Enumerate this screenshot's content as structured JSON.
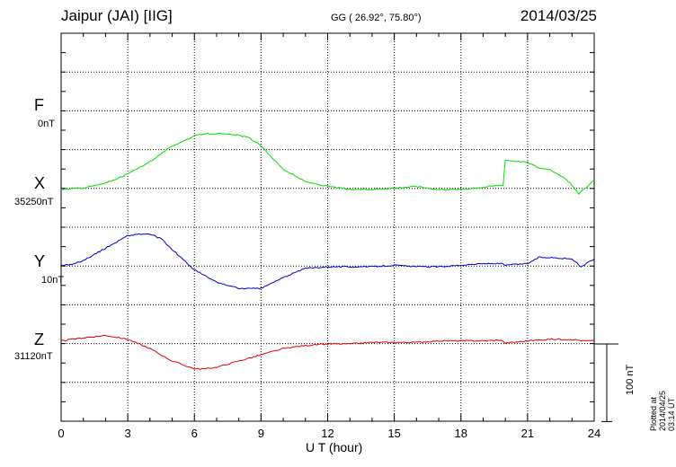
{
  "header": {
    "station": "Jaipur (JAI)  [IIG]",
    "coords": "GG ( 26.92°,  75.80°)",
    "date": "2014/03/25"
  },
  "components": [
    {
      "name": "F",
      "baseline": "0nT",
      "color": "#ffa500"
    },
    {
      "name": "X",
      "baseline": "35250nT",
      "color": "#00dd00"
    },
    {
      "name": "Y",
      "baseline": "10nT",
      "color": "#0000cc"
    },
    {
      "name": "Z",
      "baseline": "31120nT",
      "color": "#dd0000"
    }
  ],
  "scale_bar_label": "100 nT",
  "plotted_note": "Plotted at 2014/04/25 03:14 UT",
  "chart_data": {
    "type": "line",
    "xlabel": "U T (hour)",
    "xlim": [
      0,
      24
    ],
    "x_ticks": [
      0,
      3,
      6,
      9,
      12,
      15,
      18,
      21,
      24
    ],
    "y_unit": "nT",
    "scale_bar_nT": 100,
    "grid": true,
    "series": [
      {
        "name": "X",
        "color": "#00dd00",
        "x": [
          0,
          1,
          2,
          3,
          4,
          5,
          6,
          6.5,
          7,
          8,
          8.5,
          9,
          10,
          11,
          12,
          13,
          14,
          15,
          16,
          17,
          18,
          19,
          19.9,
          20,
          21,
          21.5,
          22,
          22.5,
          23,
          23.3,
          24
        ],
        "y": [
          0,
          2,
          8,
          20,
          36,
          56,
          69,
          72,
          72,
          70,
          66,
          56,
          26,
          10,
          4,
          0,
          0,
          2,
          4,
          0,
          0,
          3,
          6,
          38,
          35,
          28,
          26,
          18,
          6,
          -6,
          12
        ]
      },
      {
        "name": "Y",
        "color": "#0000cc",
        "x": [
          0,
          0.5,
          1,
          2,
          3,
          3.5,
          4,
          4.5,
          5,
          6,
          7,
          8,
          9,
          10,
          11,
          12,
          13,
          14,
          15,
          16,
          17,
          18,
          19,
          19.8,
          20,
          21,
          21.5,
          22,
          23,
          23.4,
          24
        ],
        "y": [
          2,
          3,
          8,
          24,
          40,
          42,
          42,
          36,
          22,
          -4,
          -20,
          -28,
          -28,
          -14,
          -2,
          0,
          0,
          0,
          2,
          0,
          0,
          2,
          4,
          4,
          2,
          4,
          12,
          12,
          10,
          0,
          10
        ]
      },
      {
        "name": "Z",
        "color": "#dd0000",
        "x": [
          0,
          0.5,
          1,
          2,
          3,
          4,
          5,
          6,
          6.5,
          7,
          8,
          9,
          10,
          11,
          12,
          13,
          14,
          15,
          16,
          17,
          18,
          19,
          19.8,
          20,
          21,
          22,
          23,
          23.5,
          24
        ],
        "y": [
          4,
          6,
          8,
          11,
          6,
          -6,
          -22,
          -32,
          -32,
          -30,
          -22,
          -14,
          -6,
          -2,
          0,
          0,
          2,
          2,
          2,
          4,
          4,
          4,
          5,
          1,
          4,
          6,
          6,
          4,
          4
        ]
      }
    ]
  }
}
